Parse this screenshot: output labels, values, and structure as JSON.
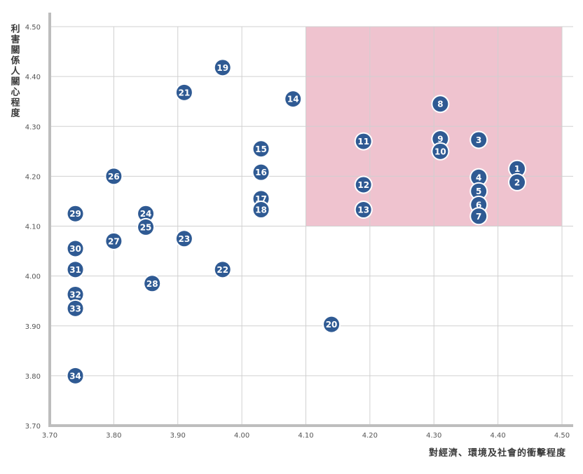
{
  "chart_data": {
    "type": "scatter",
    "xlabel": "對經濟、環境及社會的衝擊程度",
    "ylabel": "利害關係人關心程度",
    "xlim": [
      3.7,
      4.5
    ],
    "ylim": [
      3.7,
      4.5
    ],
    "x_ticks": [
      "3.70",
      "3.80",
      "3.90",
      "4.00",
      "4.10",
      "4.20",
      "4.30",
      "4.40",
      "4.50"
    ],
    "y_ticks": [
      "3.70",
      "3.80",
      "3.90",
      "4.00",
      "4.10",
      "4.20",
      "4.30",
      "4.40",
      "4.50"
    ],
    "grid": true,
    "highlight_region": {
      "x": [
        4.1,
        4.5
      ],
      "y": [
        4.1,
        4.5
      ],
      "color": "#efc3cf"
    },
    "marker_color": "#2f5a93",
    "points": [
      {
        "label": "1",
        "x": 4.43,
        "y": 4.215
      },
      {
        "label": "2",
        "x": 4.43,
        "y": 4.188
      },
      {
        "label": "3",
        "x": 4.37,
        "y": 4.273
      },
      {
        "label": "4",
        "x": 4.37,
        "y": 4.198
      },
      {
        "label": "5",
        "x": 4.37,
        "y": 4.17
      },
      {
        "label": "6",
        "x": 4.37,
        "y": 4.143
      },
      {
        "label": "7",
        "x": 4.37,
        "y": 4.12
      },
      {
        "label": "8",
        "x": 4.31,
        "y": 4.345
      },
      {
        "label": "9",
        "x": 4.31,
        "y": 4.275
      },
      {
        "label": "10",
        "x": 4.31,
        "y": 4.25
      },
      {
        "label": "11",
        "x": 4.19,
        "y": 4.27
      },
      {
        "label": "12",
        "x": 4.19,
        "y": 4.183
      },
      {
        "label": "13",
        "x": 4.19,
        "y": 4.133
      },
      {
        "label": "14",
        "x": 4.08,
        "y": 4.355
      },
      {
        "label": "15",
        "x": 4.03,
        "y": 4.255
      },
      {
        "label": "16",
        "x": 4.03,
        "y": 4.208
      },
      {
        "label": "17",
        "x": 4.03,
        "y": 4.155
      },
      {
        "label": "18",
        "x": 4.03,
        "y": 4.133
      },
      {
        "label": "19",
        "x": 3.97,
        "y": 4.418
      },
      {
        "label": "20",
        "x": 4.14,
        "y": 3.903
      },
      {
        "label": "21",
        "x": 3.91,
        "y": 4.368
      },
      {
        "label": "22",
        "x": 3.97,
        "y": 4.013
      },
      {
        "label": "23",
        "x": 3.91,
        "y": 4.075
      },
      {
        "label": "24",
        "x": 3.85,
        "y": 4.125
      },
      {
        "label": "25",
        "x": 3.85,
        "y": 4.098
      },
      {
        "label": "26",
        "x": 3.8,
        "y": 4.2
      },
      {
        "label": "27",
        "x": 3.8,
        "y": 4.07
      },
      {
        "label": "28",
        "x": 3.86,
        "y": 3.985
      },
      {
        "label": "29",
        "x": 3.74,
        "y": 4.125
      },
      {
        "label": "30",
        "x": 3.74,
        "y": 4.055
      },
      {
        "label": "31",
        "x": 3.74,
        "y": 4.013
      },
      {
        "label": "32",
        "x": 3.74,
        "y": 3.963
      },
      {
        "label": "33",
        "x": 3.74,
        "y": 3.935
      },
      {
        "label": "34",
        "x": 3.74,
        "y": 3.8
      }
    ]
  }
}
